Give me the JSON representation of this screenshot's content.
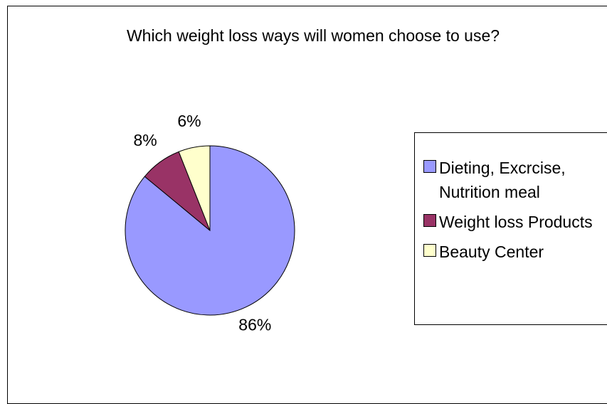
{
  "chart_data": {
    "type": "pie",
    "title": "Which weight loss ways will women choose to use?",
    "categories": [
      "Dieting, Excrcise, Nutrition meal",
      "Weight loss Products",
      "Beauty Center"
    ],
    "values": [
      86,
      8,
      6
    ],
    "value_labels": [
      "86%",
      "8%",
      "6%"
    ],
    "colors": [
      "#9999ff",
      "#993366",
      "#ffffcc"
    ],
    "legend": "right"
  }
}
